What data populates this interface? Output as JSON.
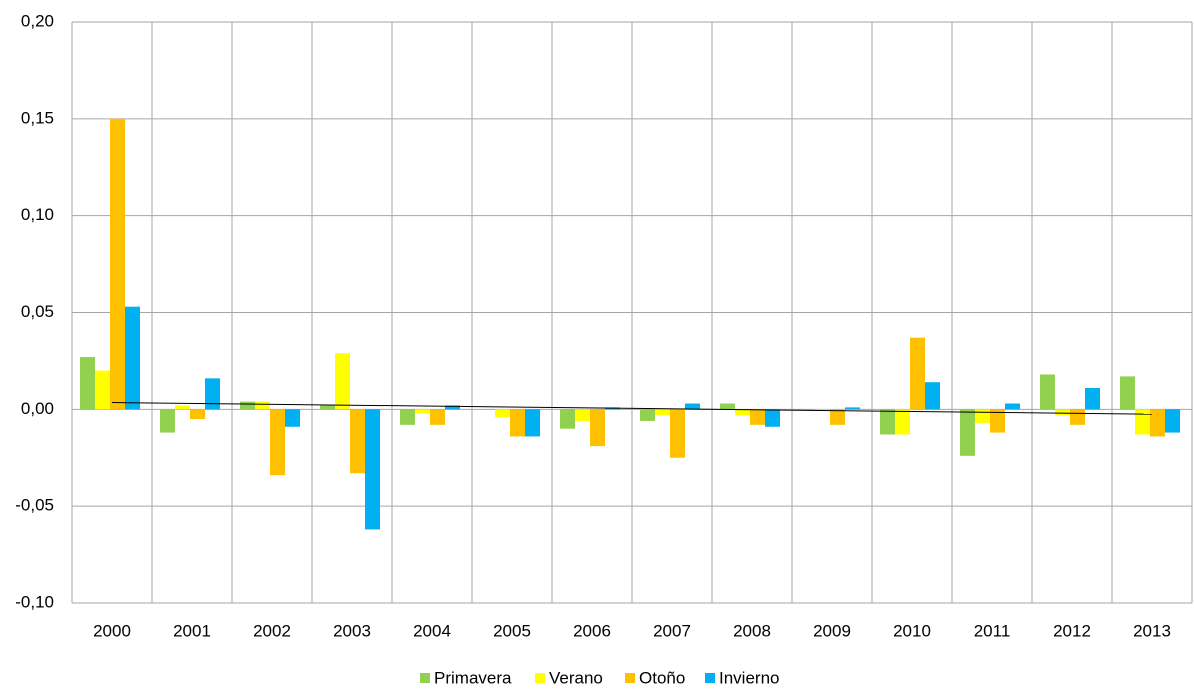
{
  "chart_data": {
    "type": "bar",
    "categories": [
      "2000",
      "2001",
      "2002",
      "2003",
      "2004",
      "2005",
      "2006",
      "2007",
      "2008",
      "2009",
      "2010",
      "2011",
      "2012",
      "2013"
    ],
    "series": [
      {
        "name": "Primavera",
        "color": "#92d050",
        "values": [
          0.027,
          -0.012,
          0.004,
          0.002,
          -0.008,
          0.0,
          -0.01,
          -0.006,
          0.003,
          0.0,
          -0.013,
          -0.024,
          0.018,
          0.017
        ]
      },
      {
        "name": "Verano",
        "color": "#ffff00",
        "values": [
          0.02,
          0.002,
          0.004,
          0.029,
          -0.002,
          -0.004,
          -0.006,
          -0.003,
          -0.003,
          0.0,
          -0.013,
          -0.007,
          -0.003,
          -0.013
        ]
      },
      {
        "name": "Otoño",
        "color": "#ffc000",
        "values": [
          0.15,
          -0.005,
          -0.034,
          -0.033,
          -0.008,
          -0.014,
          -0.019,
          -0.025,
          -0.008,
          -0.008,
          0.037,
          -0.012,
          -0.008,
          -0.014
        ]
      },
      {
        "name": "Invierno",
        "color": "#00b0f0",
        "values": [
          0.053,
          0.016,
          -0.009,
          -0.062,
          0.002,
          -0.014,
          0.001,
          0.003,
          -0.009,
          0.001,
          0.014,
          0.003,
          0.011,
          -0.012
        ]
      }
    ],
    "trend": {
      "color": "#000000",
      "values": [
        0.0035,
        -0.0025
      ]
    },
    "ylim": [
      -0.1,
      0.2
    ],
    "yticks": [
      {
        "value": -0.1,
        "label": "-0,10"
      },
      {
        "value": -0.05,
        "label": "-0,05"
      },
      {
        "value": 0,
        "label": "0,00"
      },
      {
        "value": 0.05,
        "label": "0,05"
      },
      {
        "value": 0.1,
        "label": "0,10"
      },
      {
        "value": 0.15,
        "label": "0,15"
      },
      {
        "value": 0.2,
        "label": "0,20"
      }
    ],
    "grid": true,
    "legend": "bottom"
  }
}
